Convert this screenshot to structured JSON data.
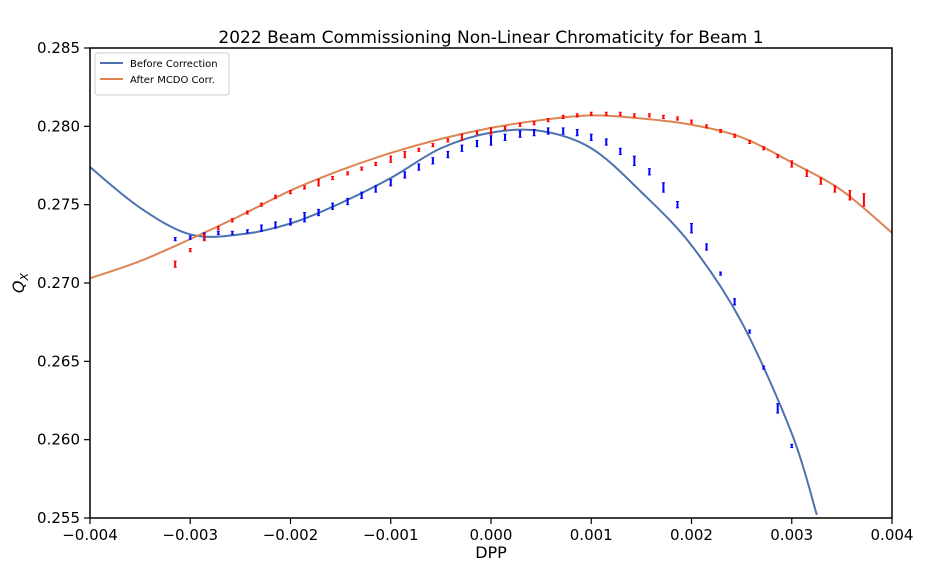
{
  "chart_data": {
    "type": "line",
    "title": "2022 Beam Commissioning Non-Linear Chromaticity for Beam 1",
    "xlabel": "DPP",
    "ylabel_main": "Q",
    "ylabel_sub": "X",
    "xlim": [
      -0.004,
      0.004
    ],
    "ylim": [
      0.255,
      0.285
    ],
    "xticks": [
      -0.004,
      -0.003,
      -0.002,
      -0.001,
      0.0,
      0.001,
      0.002,
      0.003,
      0.004
    ],
    "xtick_labels": [
      "−0.004",
      "−0.003",
      "−0.002",
      "−0.001",
      "0.000",
      "0.001",
      "0.002",
      "0.003",
      "0.004"
    ],
    "yticks": [
      0.255,
      0.26,
      0.265,
      0.27,
      0.275,
      0.28,
      0.285
    ],
    "ytick_labels": [
      "0.255",
      "0.260",
      "0.265",
      "0.270",
      "0.275",
      "0.280",
      "0.285"
    ],
    "grid": false,
    "legend_position": "top-left",
    "series": [
      {
        "name": "Before Correction",
        "kind": "fit",
        "color": "#4c72b0",
        "x": [
          -0.004,
          -0.0035,
          -0.003,
          -0.0025,
          -0.002,
          -0.0015,
          -0.001,
          -0.0005,
          0.0,
          0.0005,
          0.001,
          0.0015,
          0.002,
          0.0025,
          0.003,
          0.00325
        ],
        "y": [
          0.2774,
          0.2748,
          0.2731,
          0.2731,
          0.2738,
          0.2751,
          0.2767,
          0.2786,
          0.2796,
          0.2797,
          0.2786,
          0.2758,
          0.2724,
          0.2675,
          0.2604,
          0.2552
        ]
      },
      {
        "name": "After MCDO Corr.",
        "kind": "fit",
        "color": "#dd8452",
        "x": [
          -0.004,
          -0.0035,
          -0.003,
          -0.0025,
          -0.002,
          -0.0015,
          -0.001,
          -0.0005,
          0.0,
          0.0005,
          0.001,
          0.0015,
          0.002,
          0.0025,
          0.003,
          0.0035,
          0.004
        ],
        "y": [
          0.2703,
          0.2714,
          0.2728,
          0.2743,
          0.2759,
          0.2772,
          0.2783,
          0.2792,
          0.2799,
          0.2804,
          0.2807,
          0.2805,
          0.2801,
          0.2793,
          0.2777,
          0.2759,
          0.2732
        ]
      },
      {
        "kind": "points",
        "color": "#0000ff",
        "x": [
          -0.00315,
          -0.003,
          -0.00286,
          -0.00272,
          -0.00258,
          -0.00243,
          -0.00229,
          -0.00215,
          -0.002,
          -0.00186,
          -0.00172,
          -0.00158,
          -0.00143,
          -0.00129,
          -0.00115,
          -0.001,
          -0.00086,
          -0.00072,
          -0.00058,
          -0.00043,
          -0.00029,
          -0.00014,
          0.0,
          0.00014,
          0.00029,
          0.00043,
          0.00057,
          0.00072,
          0.00086,
          0.001,
          0.00115,
          0.00129,
          0.00143,
          0.00158,
          0.00172,
          0.00186,
          0.002,
          0.00215,
          0.00229,
          0.00243,
          0.00258,
          0.00272,
          0.00286,
          0.003
        ],
        "y": [
          0.2728,
          0.2729,
          0.273,
          0.2732,
          0.2732,
          0.2733,
          0.2735,
          0.2737,
          0.2739,
          0.2742,
          0.2745,
          0.2749,
          0.2752,
          0.2756,
          0.276,
          0.2764,
          0.2769,
          0.2774,
          0.2778,
          0.2782,
          0.2786,
          0.2789,
          0.2791,
          0.2793,
          0.2795,
          0.2796,
          0.2797,
          0.2797,
          0.2796,
          0.2793,
          0.279,
          0.2784,
          0.2778,
          0.2771,
          0.2761,
          0.275,
          0.2735,
          0.2723,
          0.2706,
          0.2688,
          0.2669,
          0.2646,
          0.262,
          0.2596
        ],
        "err": [
          0.0001,
          0.0001,
          0.0002,
          0.0001,
          0.0001,
          0.0001,
          0.0002,
          0.0002,
          0.0002,
          0.0003,
          0.0002,
          0.0002,
          0.0002,
          0.0002,
          0.0002,
          0.0002,
          0.0002,
          0.0002,
          0.0002,
          0.0002,
          0.0002,
          0.0002,
          0.0003,
          0.0002,
          0.0002,
          0.0002,
          0.0002,
          0.0002,
          0.0002,
          0.0002,
          0.0002,
          0.0002,
          0.0003,
          0.0002,
          0.0003,
          0.0002,
          0.0003,
          0.0002,
          0.0001,
          0.0002,
          0.0001,
          0.0001,
          0.0003,
          0.0001
        ]
      },
      {
        "kind": "points",
        "color": "#ff0000",
        "x": [
          -0.00315,
          -0.003,
          -0.00286,
          -0.00272,
          -0.00258,
          -0.00243,
          -0.00229,
          -0.00215,
          -0.002,
          -0.00186,
          -0.00172,
          -0.00158,
          -0.00143,
          -0.00129,
          -0.00115,
          -0.001,
          -0.00086,
          -0.00072,
          -0.00058,
          -0.00043,
          -0.00029,
          -0.00014,
          0.0,
          0.00014,
          0.00029,
          0.00043,
          0.00057,
          0.00072,
          0.00086,
          0.001,
          0.00115,
          0.00129,
          0.00143,
          0.00158,
          0.00172,
          0.00186,
          0.002,
          0.00215,
          0.00229,
          0.00243,
          0.00258,
          0.00272,
          0.00286,
          0.003,
          0.00315,
          0.00329,
          0.00343,
          0.00358,
          0.00372
        ],
        "y": [
          0.2712,
          0.2721,
          0.2729,
          0.2735,
          0.274,
          0.2745,
          0.275,
          0.2755,
          0.2758,
          0.2761,
          0.2764,
          0.2767,
          0.277,
          0.2773,
          0.2776,
          0.2779,
          0.2782,
          0.2785,
          0.2788,
          0.2791,
          0.2793,
          0.2796,
          0.2797,
          0.2799,
          0.2801,
          0.2802,
          0.2804,
          0.2806,
          0.2807,
          0.2808,
          0.2808,
          0.2808,
          0.2807,
          0.2807,
          0.2806,
          0.2805,
          0.2803,
          0.28,
          0.2797,
          0.2794,
          0.279,
          0.2786,
          0.2781,
          0.2776,
          0.277,
          0.2765,
          0.276,
          0.2756,
          0.2753
        ],
        "err": [
          0.0002,
          0.0001,
          0.0002,
          0.0001,
          0.0001,
          0.0001,
          0.0001,
          0.0001,
          0.0001,
          0.0001,
          0.0002,
          0.0001,
          0.0001,
          0.0001,
          0.0001,
          0.0002,
          0.0002,
          0.0001,
          0.0001,
          0.0001,
          0.0002,
          0.0001,
          0.0002,
          0.0001,
          0.0001,
          0.0001,
          0.0001,
          0.0001,
          0.0001,
          0.0001,
          0.0001,
          0.0001,
          0.0001,
          0.0001,
          0.0001,
          0.0001,
          0.0001,
          0.0001,
          0.0001,
          0.0001,
          0.0001,
          0.0001,
          0.0001,
          0.0002,
          0.0002,
          0.0002,
          0.0002,
          0.0003,
          0.0004
        ]
      }
    ]
  }
}
